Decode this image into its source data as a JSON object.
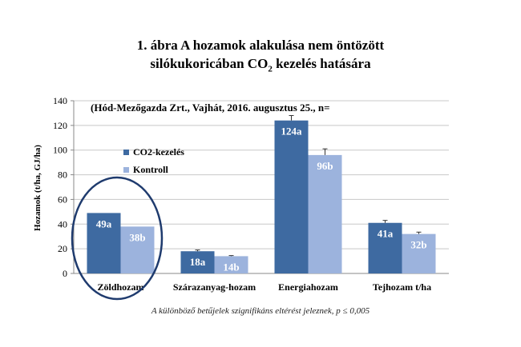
{
  "title": {
    "line1": "1. ábra A hozamok alakulása nem öntözött",
    "line2_before": "silókukoricában CO",
    "line2_sub": "2",
    "line2_after": " kezelés hatására"
  },
  "subtitle": "(Hód-Mezőgazda Zrt., Vajhát, 2016. augusztus 25., n=",
  "footnote": "A különböző betűjelek szignifikáns eltérést jeleznek, p ≤ 0,005",
  "colors": {
    "co2": "#3e6aa1",
    "control": "#9cb3dd",
    "ellipse": "#1f3b6e"
  },
  "chart_data": {
    "type": "bar",
    "categories": [
      "Zöldhozam",
      "Szárazanyag-hozam",
      "Energiahozam",
      "Tejhozam t/ha"
    ],
    "series": [
      {
        "name": "CO2-kezelés",
        "values": [
          49,
          18,
          124,
          41
        ],
        "labels": [
          "49a",
          "18a",
          "124a",
          "41a"
        ],
        "errors": [
          0,
          1,
          4,
          2
        ]
      },
      {
        "name": "Kontroll",
        "values": [
          38,
          14,
          96,
          32
        ],
        "labels": [
          "38b",
          "14b",
          "96b",
          "32b"
        ],
        "errors": [
          0,
          0.5,
          5,
          1.5
        ]
      }
    ],
    "ylabel": "Hozamok  (t/ha, GJ/ha)",
    "ylim": [
      0,
      140
    ],
    "yticks": [
      0,
      20,
      40,
      60,
      80,
      100,
      120,
      140
    ],
    "grid": true,
    "legend": "upper-left"
  }
}
